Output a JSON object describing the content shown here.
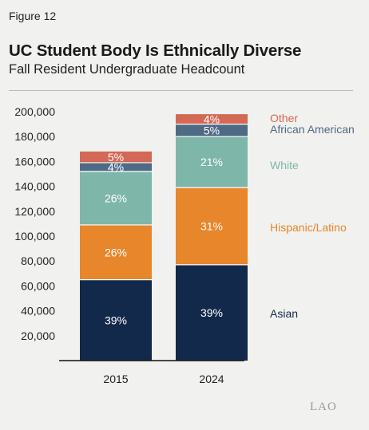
{
  "figure_label": "Figure 12",
  "chart_data": {
    "type": "bar",
    "stacked": true,
    "title": "UC Student Body Is Ethnically Diverse",
    "subtitle": "Fall Resident Undergraduate Headcount",
    "categories": [
      "2015",
      "2024"
    ],
    "ylim": [
      0,
      200000
    ],
    "y_ticks": [
      "20,000",
      "40,000",
      "60,000",
      "80,000",
      "100,000",
      "120,000",
      "140,000",
      "160,000",
      "180,000",
      "200,000"
    ],
    "y_tick_values": [
      20000,
      40000,
      60000,
      80000,
      100000,
      120000,
      140000,
      160000,
      180000,
      200000
    ],
    "grid": false,
    "legend": "right, labels beside 2024 bar",
    "series": [
      {
        "name": "Asian",
        "color": "#13294b",
        "values": [
          65000,
          77000
        ],
        "labels": [
          "39%",
          "39%"
        ]
      },
      {
        "name": "Hispanic/Latino",
        "color": "#e8862b",
        "values": [
          44000,
          62000
        ],
        "labels": [
          "26%",
          "31%"
        ]
      },
      {
        "name": "White",
        "color": "#7fb6aa",
        "values": [
          43000,
          41000
        ],
        "labels": [
          "26%",
          "21%"
        ]
      },
      {
        "name": "African American",
        "color": "#4f6a85",
        "values": [
          7000,
          10000
        ],
        "labels": [
          "4%",
          "5%"
        ]
      },
      {
        "name": "Other",
        "color": "#d26855",
        "values": [
          9000,
          8000
        ],
        "labels": [
          "5%",
          "4%"
        ]
      }
    ]
  },
  "logo_text": "LAO"
}
